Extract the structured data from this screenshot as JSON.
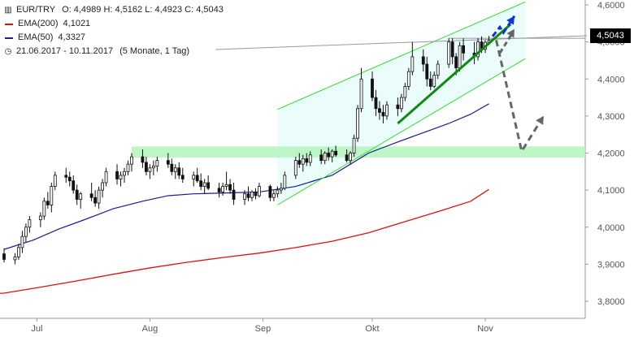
{
  "header": {
    "symbol": "EUR/TRY",
    "ohlc": "O: 4,4989  H: 4,5162  L: 4,4923  C: 4,5043",
    "ema200_label": "EMA(200)",
    "ema200_value": "4,1021",
    "ema50_label": "EMA(50)",
    "ema50_value": "4,3327",
    "range": "21.06.2017 - 10.11.2017",
    "range_detail": "(5 Monate, 1 Tag)"
  },
  "last_price_label": "4,5043",
  "colors": {
    "ema200": "#dd1111",
    "ema50": "#1a1a99",
    "channel": "#33dd33",
    "support_zone": "#b8f5c0",
    "trend": "#118811",
    "bull_arrow": "#1133dd",
    "bear_arrow": "#666666"
  },
  "chart_data": {
    "type": "candlestick",
    "title": "",
    "ylim": [
      3.78,
      4.61
    ],
    "y_ticks": [
      "4,6000",
      "4,5000",
      "4,4000",
      "4,3000",
      "4,2000",
      "4,1000",
      "4,0000",
      "3,9000",
      "3,8000"
    ],
    "y_tick_values": [
      4.6,
      4.5,
      4.4,
      4.3,
      4.2,
      4.1,
      4.0,
      3.9,
      3.8
    ],
    "x_labels": [
      "Jul",
      "Aug",
      "Sep",
      "Okt",
      "Nov"
    ],
    "x_label_positions": [
      9,
      40,
      71,
      101,
      132
    ],
    "n_days": 143,
    "candles": [
      [
        0,
        3.928,
        3.943,
        3.905,
        3.913
      ],
      [
        3,
        3.912,
        3.93,
        3.9,
        3.92
      ],
      [
        4,
        3.92,
        3.955,
        3.912,
        3.945
      ],
      [
        5,
        3.945,
        3.99,
        3.93,
        3.975
      ],
      [
        6,
        3.975,
        4.01,
        3.96,
        4.0
      ],
      [
        7,
        4.0,
        4.03,
        3.985,
        4.02
      ],
      [
        10,
        4.02,
        4.04,
        4.0,
        4.03
      ],
      [
        11,
        4.03,
        4.08,
        4.02,
        4.07
      ],
      [
        12,
        4.07,
        4.095,
        4.05,
        4.06
      ],
      [
        13,
        4.06,
        4.12,
        4.04,
        4.11
      ],
      [
        14,
        4.11,
        4.15,
        4.1,
        4.14
      ],
      [
        17,
        4.14,
        4.16,
        4.12,
        4.135
      ],
      [
        18,
        4.135,
        4.15,
        4.11,
        4.125
      ],
      [
        19,
        4.125,
        4.14,
        4.09,
        4.1
      ],
      [
        20,
        4.1,
        4.115,
        4.06,
        4.075
      ],
      [
        21,
        4.075,
        4.095,
        4.05,
        4.09
      ],
      [
        24,
        4.09,
        4.12,
        4.07,
        4.08
      ],
      [
        25,
        4.08,
        4.1,
        4.055,
        4.065
      ],
      [
        26,
        4.065,
        4.11,
        4.05,
        4.1
      ],
      [
        27,
        4.1,
        4.13,
        4.08,
        4.12
      ],
      [
        28,
        4.12,
        4.16,
        4.11,
        4.15
      ],
      [
        31,
        4.15,
        4.17,
        4.115,
        4.13
      ],
      [
        32,
        4.13,
        4.15,
        4.11,
        4.14
      ],
      [
        33,
        4.14,
        4.16,
        4.12,
        4.15
      ],
      [
        34,
        4.15,
        4.18,
        4.14,
        4.17
      ],
      [
        35,
        4.17,
        4.2,
        4.15,
        4.19
      ],
      [
        38,
        4.19,
        4.21,
        4.16,
        4.175
      ],
      [
        39,
        4.175,
        4.19,
        4.14,
        4.15
      ],
      [
        40,
        4.15,
        4.17,
        4.13,
        4.16
      ],
      [
        41,
        4.16,
        4.18,
        4.14,
        4.165
      ],
      [
        42,
        4.165,
        4.19,
        4.15,
        4.18
      ],
      [
        45,
        4.18,
        4.2,
        4.16,
        4.17
      ],
      [
        46,
        4.17,
        4.185,
        4.14,
        4.15
      ],
      [
        47,
        4.15,
        4.17,
        4.13,
        4.16
      ],
      [
        48,
        4.16,
        4.175,
        4.13,
        4.14
      ],
      [
        49,
        4.14,
        4.16,
        4.12,
        4.13
      ],
      [
        52,
        4.13,
        4.15,
        4.11,
        4.14
      ],
      [
        53,
        4.14,
        4.16,
        4.12,
        4.125
      ],
      [
        54,
        4.125,
        4.145,
        4.1,
        4.11
      ],
      [
        55,
        4.11,
        4.13,
        4.09,
        4.12
      ],
      [
        56,
        4.12,
        4.14,
        4.1,
        4.105
      ],
      [
        59,
        4.105,
        4.12,
        4.08,
        4.095
      ],
      [
        60,
        4.095,
        4.12,
        4.085,
        4.11
      ],
      [
        61,
        4.11,
        4.15,
        4.1,
        4.115
      ],
      [
        62,
        4.115,
        4.13,
        4.09,
        4.1
      ],
      [
        63,
        4.1,
        4.12,
        4.06,
        4.075
      ],
      [
        66,
        4.075,
        4.1,
        4.06,
        4.09
      ],
      [
        67,
        4.09,
        4.11,
        4.07,
        4.08
      ],
      [
        68,
        4.08,
        4.1,
        4.07,
        4.095
      ],
      [
        69,
        4.095,
        4.105,
        4.075,
        4.085
      ],
      [
        70,
        4.085,
        4.12,
        4.08,
        4.11
      ],
      [
        73,
        4.11,
        4.115,
        4.07,
        4.08
      ],
      [
        74,
        4.08,
        4.1,
        4.07,
        4.09
      ],
      [
        75,
        4.09,
        4.11,
        4.08,
        4.1
      ],
      [
        76,
        4.1,
        4.12,
        4.09,
        4.105
      ],
      [
        77,
        4.105,
        4.15,
        4.1,
        4.14
      ],
      [
        80,
        4.14,
        4.19,
        4.13,
        4.18
      ],
      [
        81,
        4.18,
        4.2,
        4.16,
        4.17
      ],
      [
        82,
        4.17,
        4.195,
        4.15,
        4.185
      ],
      [
        83,
        4.185,
        4.2,
        4.165,
        4.175
      ],
      [
        84,
        4.175,
        4.205,
        4.165,
        4.195
      ],
      [
        87,
        4.195,
        4.21,
        4.17,
        4.18
      ],
      [
        88,
        4.18,
        4.205,
        4.17,
        4.2
      ],
      [
        89,
        4.2,
        4.215,
        4.18,
        4.19
      ],
      [
        90,
        4.19,
        4.21,
        4.175,
        4.205
      ],
      [
        91,
        4.205,
        4.22,
        4.19,
        4.195
      ],
      [
        94,
        4.195,
        4.21,
        4.175,
        4.18
      ],
      [
        95,
        4.18,
        4.205,
        4.17,
        4.2
      ],
      [
        96,
        4.2,
        4.25,
        4.19,
        4.24
      ],
      [
        97,
        4.24,
        4.33,
        4.23,
        4.32
      ],
      [
        98,
        4.32,
        4.43,
        4.31,
        4.4
      ],
      [
        101,
        4.4,
        4.42,
        4.34,
        4.35
      ],
      [
        102,
        4.35,
        4.37,
        4.3,
        4.32
      ],
      [
        103,
        4.32,
        4.34,
        4.29,
        4.31
      ],
      [
        104,
        4.31,
        4.33,
        4.28,
        4.3
      ],
      [
        105,
        4.3,
        4.34,
        4.29,
        4.33
      ],
      [
        108,
        4.33,
        4.35,
        4.3,
        4.32
      ],
      [
        109,
        4.32,
        4.36,
        4.31,
        4.35
      ],
      [
        110,
        4.35,
        4.39,
        4.34,
        4.38
      ],
      [
        111,
        4.38,
        4.43,
        4.37,
        4.42
      ],
      [
        112,
        4.42,
        4.5,
        4.41,
        4.46
      ],
      [
        115,
        4.46,
        4.48,
        4.42,
        4.44
      ],
      [
        116,
        4.44,
        4.46,
        4.38,
        4.4
      ],
      [
        117,
        4.4,
        4.42,
        4.37,
        4.38
      ],
      [
        118,
        4.38,
        4.42,
        4.375,
        4.41
      ],
      [
        119,
        4.41,
        4.45,
        4.4,
        4.44
      ],
      [
        122,
        4.44,
        4.51,
        4.43,
        4.5
      ],
      [
        123,
        4.5,
        4.51,
        4.44,
        4.46
      ],
      [
        124,
        4.46,
        4.47,
        4.41,
        4.43
      ],
      [
        125,
        4.43,
        4.5,
        4.42,
        4.49
      ],
      [
        126,
        4.49,
        4.51,
        4.45,
        4.47
      ],
      [
        129,
        4.47,
        4.5,
        4.44,
        4.46
      ],
      [
        130,
        4.46,
        4.51,
        4.45,
        4.5
      ],
      [
        131,
        4.5,
        4.515,
        4.47,
        4.48
      ],
      [
        132,
        4.48,
        4.505,
        4.47,
        4.499
      ],
      [
        133,
        4.499,
        4.516,
        4.492,
        4.504
      ]
    ],
    "ema200": [
      [
        -20,
        3.811
      ],
      [
        0,
        3.822
      ],
      [
        10,
        3.838
      ],
      [
        20,
        3.855
      ],
      [
        30,
        3.873
      ],
      [
        40,
        3.89
      ],
      [
        50,
        3.905
      ],
      [
        60,
        3.918
      ],
      [
        70,
        3.93
      ],
      [
        80,
        3.945
      ],
      [
        90,
        3.962
      ],
      [
        100,
        3.985
      ],
      [
        110,
        4.015
      ],
      [
        120,
        4.045
      ],
      [
        128,
        4.07
      ],
      [
        133,
        4.102
      ]
    ],
    "ema50": [
      [
        0,
        3.94
      ],
      [
        8,
        3.965
      ],
      [
        15,
        3.995
      ],
      [
        22,
        4.02
      ],
      [
        30,
        4.05
      ],
      [
        38,
        4.07
      ],
      [
        45,
        4.085
      ],
      [
        52,
        4.09
      ],
      [
        60,
        4.092
      ],
      [
        70,
        4.095
      ],
      [
        80,
        4.11
      ],
      [
        90,
        4.14
      ],
      [
        95,
        4.17
      ],
      [
        100,
        4.2
      ],
      [
        108,
        4.23
      ],
      [
        115,
        4.255
      ],
      [
        122,
        4.28
      ],
      [
        128,
        4.305
      ],
      [
        133,
        4.333
      ]
    ],
    "annotations": {
      "channel_lower": [
        [
          75,
          4.06
        ],
        [
          143,
          4.455
        ]
      ],
      "channel_upper": [
        [
          75,
          4.318
        ],
        [
          143,
          4.608
        ]
      ],
      "support_zone": [
        4.188,
        4.218
      ],
      "resistance_line": [
        4.51,
        4.51
      ],
      "trend_line": [
        [
          108,
          4.28
        ],
        [
          139,
          4.548
        ]
      ],
      "bull_arrow": [
        [
          134,
          4.515
        ],
        [
          136,
          4.54
        ],
        [
          137,
          4.525
        ],
        [
          140,
          4.57
        ]
      ],
      "bear_arrow": [
        [
          135,
          4.505
        ],
        [
          142,
          4.205
        ],
        [
          148,
          4.3
        ]
      ]
    }
  }
}
